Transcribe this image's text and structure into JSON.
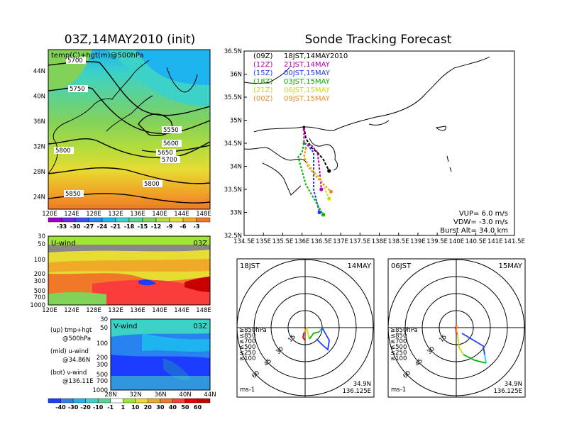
{
  "header": {
    "left_title": "03Z,14MAY2010 (init)",
    "right_title": "Sonde Tracking Forecast"
  },
  "map_panel": {
    "label": "temp(C)+hgt(m)@500hPa",
    "lat_ticks": [
      "44N",
      "40N",
      "36N",
      "32N",
      "28N",
      "24N"
    ],
    "lon_ticks": [
      "120E",
      "124E",
      "128E",
      "132E",
      "136E",
      "140E",
      "144E",
      "148E"
    ],
    "contour_labels": [
      "5700",
      "5750",
      "5550",
      "5600",
      "5650",
      "5700",
      "5800",
      "5850",
      "5800"
    ],
    "colorbar_labels": [
      "-33",
      "-30",
      "-27",
      "-24",
      "-21",
      "-18",
      "-15",
      "-12",
      "-9",
      "-6",
      "-3"
    ],
    "colorbar_colors": [
      "#a000c8",
      "#6e28dc",
      "#3c50f0",
      "#2882f0",
      "#1eb4f0",
      "#3cd2c8",
      "#5ad296",
      "#82d25a",
      "#b4dc3c",
      "#e6dc32",
      "#f0aa28",
      "#f07828"
    ]
  },
  "u_panel": {
    "label": "U-wind",
    "time": "03Z",
    "p_ticks": [
      "30",
      "50",
      "100",
      "200",
      "300",
      "500",
      "700",
      "1000"
    ],
    "lon_ticks": [
      "120E",
      "124E",
      "128E",
      "132E",
      "136E",
      "140E",
      "144E",
      "148E"
    ]
  },
  "v_panel": {
    "label": "V-wind",
    "time": "03Z",
    "p_ticks": [
      "30",
      "50",
      "100",
      "200",
      "300",
      "500",
      "700",
      "1000"
    ],
    "lat_ticks": [
      "28N",
      "32N",
      "36N",
      "40N",
      "44N"
    ]
  },
  "side_legend": {
    "up_1": "(up) tmp+hgt",
    "up_2": "@500hPa",
    "mid_1": "(mid) u-wind",
    "mid_2": "@34.86N",
    "bot_1": "(bot) v-wind",
    "bot_2": "@136.11E"
  },
  "wind_colorbar": {
    "labels": [
      "-40",
      "-30",
      "-20",
      "-10",
      "-1",
      "1",
      "10",
      "20",
      "30",
      "40",
      "50",
      "60"
    ],
    "colors": [
      "#1e3cff",
      "#2882f0",
      "#1eb4f0",
      "#3cd2c8",
      "#5ad296",
      "#ffffff",
      "#a0e632",
      "#e6dc32",
      "#f0aa28",
      "#f07828",
      "#fa3c3c",
      "#e60000",
      "#c80000"
    ]
  },
  "track_panel": {
    "lat_ticks": [
      "36.5N",
      "36N",
      "35.5N",
      "35N",
      "34.5N",
      "34N",
      "33.5N",
      "33N",
      "32.5N"
    ],
    "lon_ticks": [
      "134.5E",
      "135E",
      "135.5E",
      "136E",
      "136.5E",
      "137E",
      "137.5E",
      "138E",
      "138.5E",
      "139E",
      "139.5E",
      "140E",
      "140.5E",
      "141E",
      "141.5E"
    ],
    "legend": [
      {
        "code": "(09Z)",
        "text": "18JST,14MAY2010",
        "color": "#000000"
      },
      {
        "code": "(12Z)",
        "text": "21JST,14MAY",
        "color": "#b400b4"
      },
      {
        "code": "(15Z)",
        "text": "00JST,15MAY",
        "color": "#1e3cff"
      },
      {
        "code": "(18Z)",
        "text": "03JST,15MAY",
        "color": "#00b400"
      },
      {
        "code": "(21Z)",
        "text": "06JST,15MAY",
        "color": "#c8dc00"
      },
      {
        "code": "(00Z)",
        "text": "09JST,15MAY",
        "color": "#f08c28"
      }
    ],
    "params": {
      "vup": "VUP= 6.0 m/s",
      "vdw": "VDW= -3.0 m/s",
      "burst": "Burst Alt= 34.0 km"
    }
  },
  "hodo_left": {
    "time": "18JST",
    "date": "14MAY",
    "ring_labels": [
      "15",
      "30",
      "45",
      "60"
    ],
    "levels": [
      {
        "text": "≥850hPa",
        "color": "#e60000"
      },
      {
        "text": "≤850",
        "color": "#f08c28"
      },
      {
        "text": "≤700",
        "color": "#c8dc00"
      },
      {
        "text": "≤500",
        "color": "#00b400"
      },
      {
        "text": "≤250",
        "color": "#28c8dc"
      },
      {
        "text": "≤100",
        "color": "#1e3cff"
      }
    ],
    "unit": "ms-1",
    "loc_lat": "34.9N",
    "loc_lon": "136.125E"
  },
  "hodo_right": {
    "time": "06JST",
    "date": "15MAY",
    "ring_labels": [
      "15",
      "30",
      "45",
      "60"
    ],
    "levels": [
      {
        "text": "≥850hPa",
        "color": "#e60000"
      },
      {
        "text": "≤850",
        "color": "#f08c28"
      },
      {
        "text": "≤700",
        "color": "#c8dc00"
      },
      {
        "text": "≤500",
        "color": "#00b400"
      },
      {
        "text": "≤250",
        "color": "#28c8dc"
      },
      {
        "text": "≤100",
        "color": "#1e3cff"
      }
    ],
    "unit": "ms-1",
    "loc_lat": "34.9N",
    "loc_lon": "136.125E"
  },
  "chart_data": [
    {
      "type": "heatmap",
      "title": "03Z,14MAY2010 (init)",
      "subtitle": "temp(C)+hgt(m)@500hPa",
      "xlabel": "",
      "ylabel": "",
      "x_ticks": [
        "120E",
        "124E",
        "128E",
        "132E",
        "136E",
        "140E",
        "144E",
        "148E"
      ],
      "y_ticks": [
        "44N",
        "40N",
        "36N",
        "32N",
        "28N",
        "24N"
      ],
      "contour_levels_m": [
        5550,
        5600,
        5650,
        5700,
        5750,
        5800,
        5850
      ],
      "colorbar": [
        "-33",
        "-30",
        "-27",
        "-24",
        "-21",
        "-18",
        "-15",
        "-12",
        "-9",
        "-6",
        "-3"
      ]
    },
    {
      "type": "line",
      "title": "Sonde Tracking Forecast",
      "xlim": [
        134.5,
        141.5
      ],
      "ylim": [
        32.5,
        36.5
      ],
      "series": [
        {
          "name": "(09Z) 18JST,14MAY2010",
          "x": [
            136.05,
            136.1,
            136.25,
            136.4,
            136.5,
            136.55,
            136.7
          ],
          "y": [
            34.85,
            34.6,
            34.4,
            34.3,
            34.2,
            34.15,
            33.9
          ]
        },
        {
          "name": "(12Z) 21JST,14MAY",
          "x": [
            136.05,
            136.05,
            136.25,
            136.4,
            136.45,
            136.5
          ],
          "y": [
            34.8,
            34.5,
            34.45,
            34.3,
            33.95,
            33.5
          ]
        },
        {
          "name": "(15Z) 00JST,15MAY",
          "x": [
            136.05,
            136.15,
            136.3,
            136.3,
            136.45
          ],
          "y": [
            34.5,
            34.45,
            34.3,
            33.5,
            33.0
          ]
        },
        {
          "name": "(18Z) 03JST,15MAY",
          "x": [
            136.05,
            136.0,
            135.9,
            136.1,
            136.55
          ],
          "y": [
            34.5,
            34.3,
            34.2,
            33.6,
            32.95
          ]
        },
        {
          "name": "(21Z) 06JST,15MAY",
          "x": [
            136.1,
            136.05,
            136.2,
            136.5,
            136.7
          ],
          "y": [
            34.4,
            34.2,
            34.0,
            33.7,
            33.3
          ]
        },
        {
          "name": "(00Z) 09JST,15MAY",
          "x": [
            136.1,
            136.05,
            136.15,
            136.45,
            136.75
          ],
          "y": [
            34.4,
            34.2,
            34.0,
            33.7,
            33.45
          ]
        }
      ]
    }
  ]
}
